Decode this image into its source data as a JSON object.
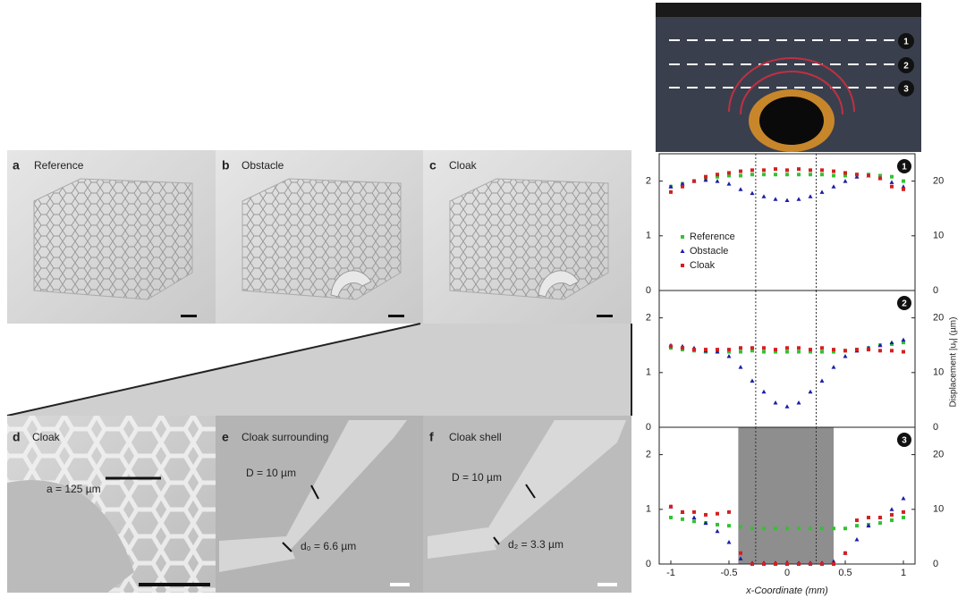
{
  "figure": {
    "photos": [
      {
        "letter": "a",
        "label": "Reference"
      },
      {
        "letter": "b",
        "label": "Obstacle"
      },
      {
        "letter": "c",
        "label": "Cloak"
      },
      {
        "letter": "d",
        "label": "Cloak",
        "note": "a = 125 µm"
      },
      {
        "letter": "e",
        "label": "Cloak surrounding",
        "note": "D = 10 µm",
        "note2": "d₀ = 6.6 µm"
      },
      {
        "letter": "f",
        "label": "Cloak shell",
        "note": "D = 10 µm",
        "note2": "d₂ = 3.3 µm"
      }
    ],
    "line_numbers": [
      "1",
      "2",
      "3"
    ],
    "y2label": "Displacement |uᵧ| (µm)",
    "xlabel": "x-Coordinate (mm)"
  },
  "chart_data": [
    {
      "type": "scatter",
      "title": "1",
      "xlim": [
        -1.1,
        1.1
      ],
      "ylim": [
        0,
        2.5
      ],
      "yticks": [
        0,
        1,
        2
      ],
      "y2lim": [
        0,
        25
      ],
      "y2ticks": [
        0,
        10,
        20
      ],
      "vlines": [
        -0.27,
        0.25
      ],
      "legend": "center-left",
      "x": [
        -1,
        -0.9,
        -0.8,
        -0.7,
        -0.6,
        -0.5,
        -0.4,
        -0.3,
        -0.2,
        -0.1,
        0,
        0.1,
        0.2,
        0.3,
        0.4,
        0.5,
        0.6,
        0.7,
        0.8,
        0.9,
        1
      ],
      "series": [
        {
          "name": "Reference",
          "color": "#33c233",
          "marker": "square",
          "values": [
            1.9,
            1.95,
            2.0,
            2.05,
            2.08,
            2.1,
            2.1,
            2.12,
            2.12,
            2.12,
            2.12,
            2.12,
            2.12,
            2.12,
            2.1,
            2.1,
            2.12,
            2.12,
            2.1,
            2.08,
            2.0
          ]
        },
        {
          "name": "Obstacle",
          "color": "#1c1ca8",
          "marker": "triangle",
          "values": [
            1.9,
            1.95,
            2.0,
            2.02,
            2.0,
            1.95,
            1.85,
            1.78,
            1.72,
            1.67,
            1.65,
            1.67,
            1.72,
            1.8,
            1.9,
            2.0,
            2.08,
            2.1,
            2.05,
            1.98,
            1.9
          ]
        },
        {
          "name": "Cloak",
          "color": "#d42020",
          "marker": "square",
          "values": [
            1.8,
            1.9,
            2.0,
            2.08,
            2.12,
            2.15,
            2.18,
            2.2,
            2.2,
            2.22,
            2.2,
            2.22,
            2.2,
            2.2,
            2.18,
            2.15,
            2.12,
            2.1,
            2.05,
            1.9,
            1.85
          ]
        }
      ]
    },
    {
      "type": "scatter",
      "title": "2",
      "xlim": [
        -1.1,
        1.1
      ],
      "ylim": [
        0,
        2.5
      ],
      "yticks": [
        0,
        1,
        2
      ],
      "y2lim": [
        0,
        25
      ],
      "y2ticks": [
        0,
        10,
        20
      ],
      "vlines": [
        -0.27,
        0.25
      ],
      "x": [
        -1,
        -0.9,
        -0.8,
        -0.7,
        -0.6,
        -0.5,
        -0.4,
        -0.3,
        -0.2,
        -0.1,
        0,
        0.1,
        0.2,
        0.3,
        0.4,
        0.5,
        0.6,
        0.7,
        0.8,
        0.9,
        1
      ],
      "series": [
        {
          "color": "#33c233",
          "marker": "square",
          "values": [
            1.45,
            1.42,
            1.4,
            1.38,
            1.38,
            1.38,
            1.38,
            1.4,
            1.38,
            1.38,
            1.38,
            1.38,
            1.38,
            1.38,
            1.38,
            1.4,
            1.42,
            1.45,
            1.5,
            1.52,
            1.55
          ]
        },
        {
          "color": "#1c1ca8",
          "marker": "triangle",
          "values": [
            1.5,
            1.48,
            1.45,
            1.4,
            1.38,
            1.3,
            1.1,
            0.85,
            0.65,
            0.45,
            0.38,
            0.45,
            0.65,
            0.85,
            1.1,
            1.3,
            1.4,
            1.45,
            1.5,
            1.55,
            1.6
          ]
        },
        {
          "color": "#d42020",
          "marker": "square",
          "values": [
            1.48,
            1.45,
            1.42,
            1.42,
            1.42,
            1.42,
            1.45,
            1.45,
            1.45,
            1.42,
            1.45,
            1.45,
            1.42,
            1.45,
            1.42,
            1.4,
            1.42,
            1.42,
            1.4,
            1.4,
            1.38
          ]
        }
      ]
    },
    {
      "type": "scatter",
      "title": "3",
      "xlim": [
        -1.1,
        1.1
      ],
      "ylim": [
        0,
        2.5
      ],
      "yticks": [
        0,
        1,
        2
      ],
      "y2lim": [
        0,
        25
      ],
      "y2ticks": [
        0,
        10,
        20
      ],
      "xticks": [
        -1,
        -0.5,
        0,
        0.5,
        1
      ],
      "vlines": [
        -0.27,
        0.25
      ],
      "shade": [
        -0.42,
        0.4
      ],
      "x": [
        -1,
        -0.9,
        -0.8,
        -0.7,
        -0.6,
        -0.5,
        -0.4,
        -0.3,
        -0.2,
        -0.1,
        0,
        0.1,
        0.2,
        0.3,
        0.4,
        0.5,
        0.6,
        0.7,
        0.8,
        0.9,
        1
      ],
      "series": [
        {
          "color": "#33c233",
          "marker": "square",
          "values": [
            0.85,
            0.82,
            0.78,
            0.75,
            0.72,
            0.7,
            0.68,
            0.65,
            0.65,
            0.65,
            0.65,
            0.65,
            0.65,
            0.65,
            0.65,
            0.65,
            0.7,
            0.72,
            0.75,
            0.8,
            0.85
          ]
        },
        {
          "color": "#1c1ca8",
          "marker": "triangle",
          "values": [
            1.05,
            0.95,
            0.85,
            0.75,
            0.6,
            0.4,
            0.1,
            0.02,
            0.02,
            0.02,
            0.02,
            0.02,
            0.02,
            0.02,
            0.05,
            0.2,
            0.45,
            0.7,
            0.85,
            1.0,
            1.2
          ]
        },
        {
          "color": "#d42020",
          "marker": "square",
          "values": [
            1.05,
            0.95,
            0.95,
            0.9,
            0.92,
            0.95,
            0.2,
            0.0,
            0.0,
            0.0,
            0.0,
            0.0,
            0.0,
            0.0,
            0.0,
            0.2,
            0.8,
            0.85,
            0.85,
            0.9,
            0.95
          ]
        }
      ]
    }
  ]
}
